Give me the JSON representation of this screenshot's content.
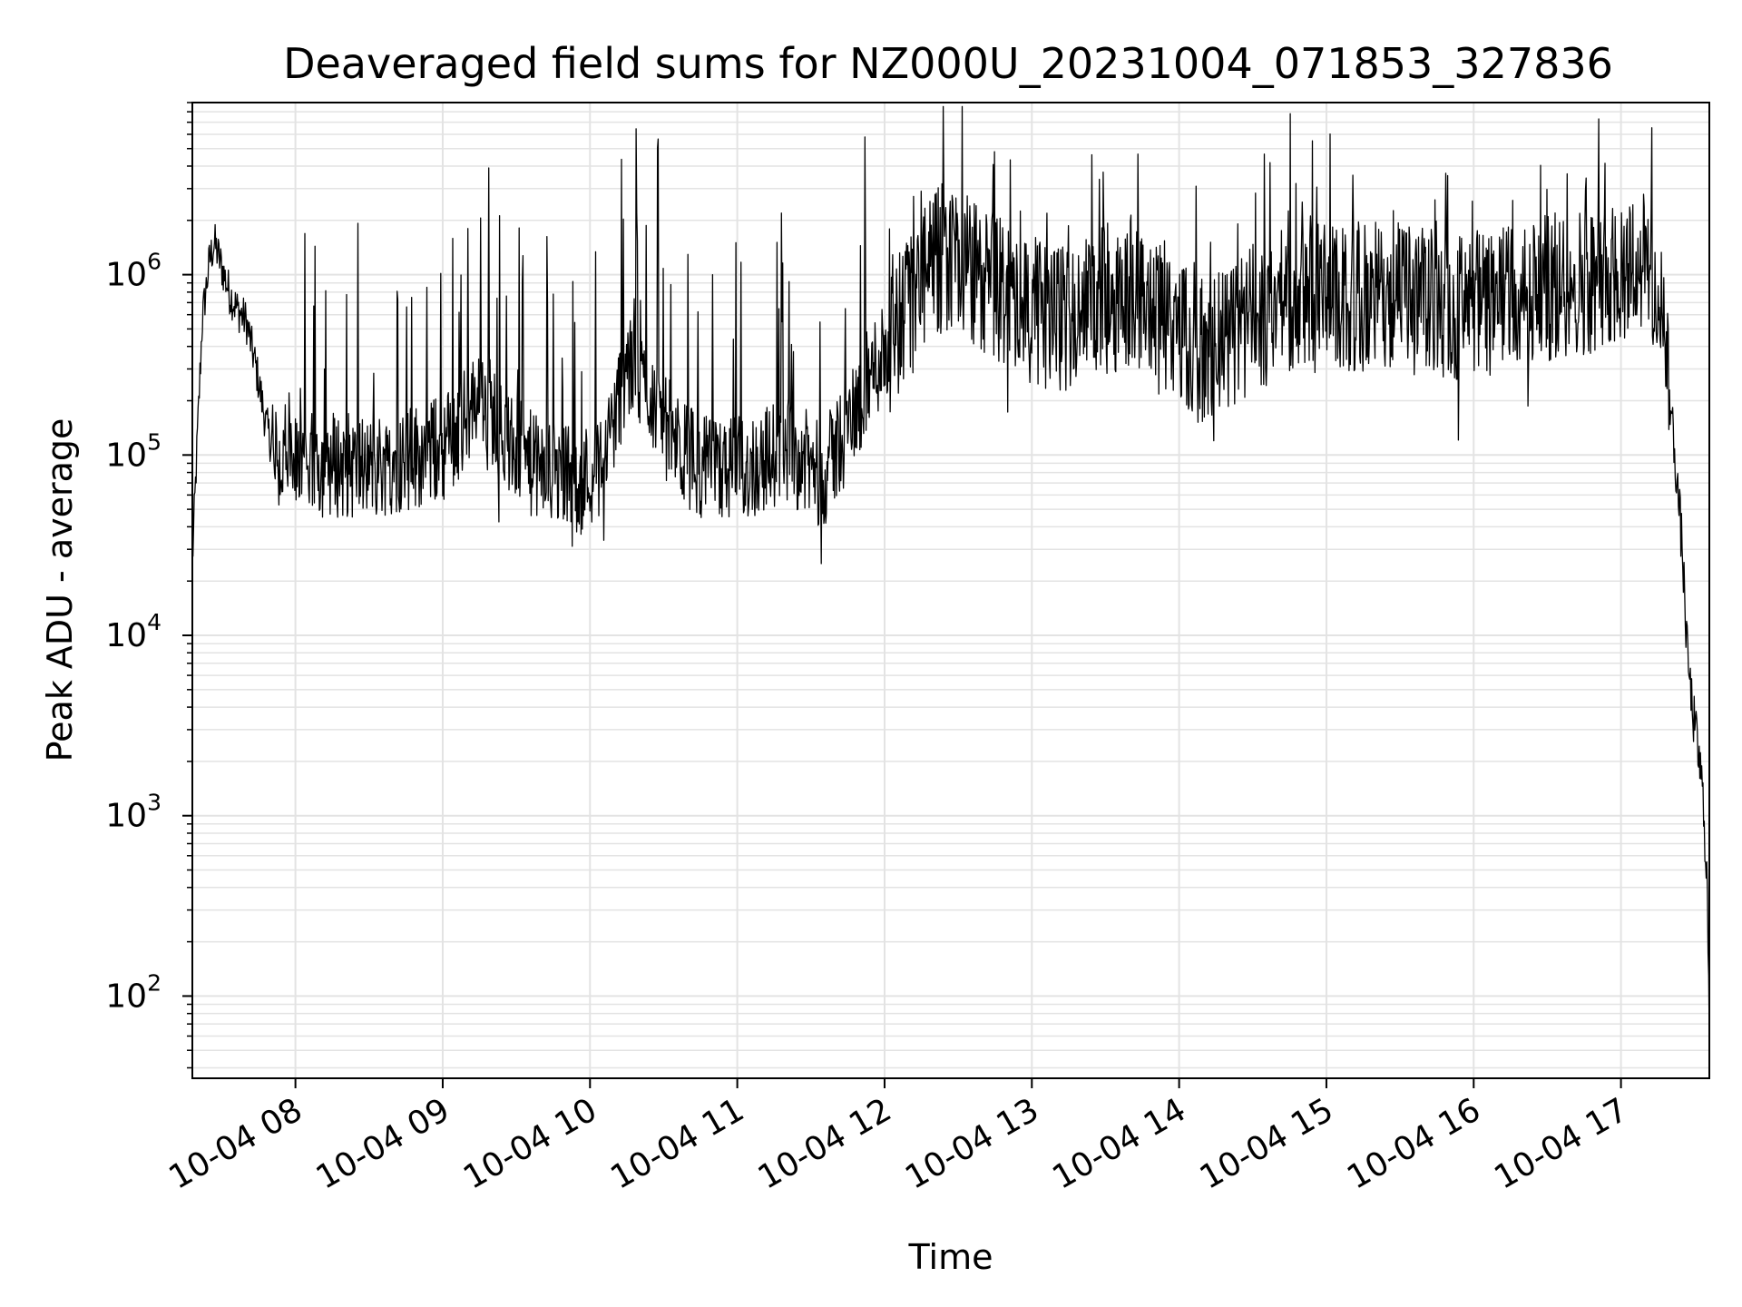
{
  "chart_data": {
    "type": "line",
    "title": "Deaveraged field sums for NZ000U_20231004_071853_327836",
    "xlabel": "Time",
    "ylabel": "Peak ADU - average",
    "y_scale": "log",
    "ylim": [
      35,
      9000000
    ],
    "xlim": [
      "2023-10-04 07:18",
      "2023-10-04 17:36"
    ],
    "grid": true,
    "line_color": "#000000",
    "grid_color": "#e3e3e3",
    "x_ticks": [
      {
        "t": "2023-10-04 08:00",
        "label": "10-04 08"
      },
      {
        "t": "2023-10-04 09:00",
        "label": "10-04 09"
      },
      {
        "t": "2023-10-04 10:00",
        "label": "10-04 10"
      },
      {
        "t": "2023-10-04 11:00",
        "label": "10-04 11"
      },
      {
        "t": "2023-10-04 12:00",
        "label": "10-04 12"
      },
      {
        "t": "2023-10-04 13:00",
        "label": "10-04 13"
      },
      {
        "t": "2023-10-04 14:00",
        "label": "10-04 14"
      },
      {
        "t": "2023-10-04 15:00",
        "label": "10-04 15"
      },
      {
        "t": "2023-10-04 16:00",
        "label": "10-04 16"
      },
      {
        "t": "2023-10-04 17:00",
        "label": "10-04 17"
      }
    ],
    "y_ticks": [
      {
        "value": 100,
        "base": "10",
        "exp": "2"
      },
      {
        "value": 1000,
        "base": "10",
        "exp": "3"
      },
      {
        "value": 10000,
        "base": "10",
        "exp": "4"
      },
      {
        "value": 100000,
        "base": "10",
        "exp": "5"
      },
      {
        "value": 1000000,
        "base": "10",
        "exp": "6"
      }
    ],
    "series": [
      {
        "points": [
          [
            "2023-10-04 07:18",
            25000
          ],
          [
            "2023-10-04 07:20",
            120000
          ],
          [
            "2023-10-04 07:22",
            550000
          ],
          [
            "2023-10-04 07:25",
            1200000
          ],
          [
            "2023-10-04 07:27",
            1500000
          ],
          [
            "2023-10-04 07:30",
            1100000
          ],
          [
            "2023-10-04 07:33",
            800000
          ],
          [
            "2023-10-04 07:36",
            650000
          ],
          [
            "2023-10-04 07:40",
            550000
          ],
          [
            "2023-10-04 07:44",
            300000
          ],
          [
            "2023-10-04 07:48",
            150000
          ],
          [
            "2023-10-04 07:52",
            90000
          ],
          [
            "2023-10-04 08:00",
            85000
          ],
          [
            "2023-10-04 08:15",
            90000
          ],
          [
            "2023-10-04 08:30",
            85000
          ],
          [
            "2023-10-04 08:45",
            95000
          ],
          [
            "2023-10-04 09:00",
            110000
          ],
          [
            "2023-10-04 09:10",
            160000
          ],
          [
            "2023-10-04 09:15",
            250000
          ],
          [
            "2023-10-04 09:25",
            120000
          ],
          [
            "2023-10-04 09:40",
            80000
          ],
          [
            "2023-10-04 09:55",
            70000
          ],
          [
            "2023-10-04 10:05",
            90000
          ],
          [
            "2023-10-04 10:15",
            300000
          ],
          [
            "2023-10-04 10:25",
            220000
          ],
          [
            "2023-10-04 10:35",
            110000
          ],
          [
            "2023-10-04 10:50",
            80000
          ],
          [
            "2023-10-04 11:05",
            85000
          ],
          [
            "2023-10-04 11:20",
            110000
          ],
          [
            "2023-10-04 11:35",
            75000
          ],
          [
            "2023-10-04 11:50",
            200000
          ],
          [
            "2023-10-04 12:00",
            400000
          ],
          [
            "2023-10-04 12:15",
            900000
          ],
          [
            "2023-10-04 12:25",
            1300000
          ],
          [
            "2023-10-04 12:40",
            900000
          ],
          [
            "2023-10-04 12:55",
            700000
          ],
          [
            "2023-10-04 13:10",
            550000
          ],
          [
            "2023-10-04 13:25",
            700000
          ],
          [
            "2023-10-04 13:40",
            800000
          ],
          [
            "2023-10-04 13:55",
            600000
          ],
          [
            "2023-10-04 14:10",
            350000
          ],
          [
            "2023-10-04 14:25",
            500000
          ],
          [
            "2023-10-04 14:40",
            700000
          ],
          [
            "2023-10-04 14:55",
            750000
          ],
          [
            "2023-10-04 15:10",
            700000
          ],
          [
            "2023-10-04 15:25",
            800000
          ],
          [
            "2023-10-04 15:40",
            700000
          ],
          [
            "2023-10-04 15:55",
            650000
          ],
          [
            "2023-10-04 16:10",
            700000
          ],
          [
            "2023-10-04 16:25",
            800000
          ],
          [
            "2023-10-04 16:40",
            900000
          ],
          [
            "2023-10-04 16:55",
            1000000
          ],
          [
            "2023-10-04 17:05",
            1200000
          ],
          [
            "2023-10-04 17:12",
            1100000
          ],
          [
            "2023-10-04 17:18",
            400000
          ],
          [
            "2023-10-04 17:22",
            100000
          ],
          [
            "2023-10-04 17:25",
            30000
          ],
          [
            "2023-10-04 17:27",
            8000
          ],
          [
            "2023-10-04 17:29",
            4000
          ],
          [
            "2023-10-04 17:31",
            2500
          ],
          [
            "2023-10-04 17:33",
            1500
          ],
          [
            "2023-10-04 17:35",
            500
          ],
          [
            "2023-10-04 17:36",
            60
          ]
        ]
      }
    ]
  }
}
